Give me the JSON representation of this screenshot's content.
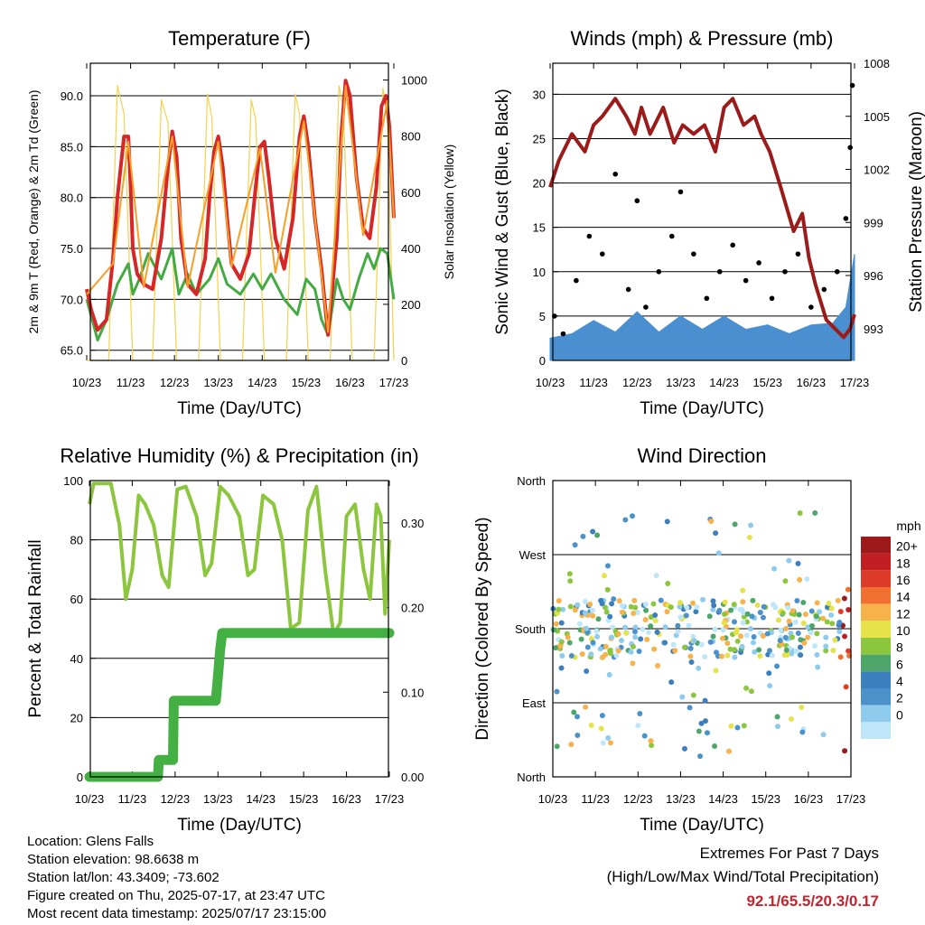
{
  "x_ticks": [
    "10/23",
    "11/23",
    "12/23",
    "13/23",
    "14/23",
    "15/23",
    "16/23",
    "17/23"
  ],
  "chart_data": [
    {
      "type": "line",
      "title": "Temperature (F)",
      "xlabel": "Time (Day/UTC)",
      "ylabel": "2m & 9m T (Red, Orange) & 2m Td (Green)",
      "ylabel_right": "Solar Insolation (Yellow)",
      "ylim": [
        64,
        93.2
      ],
      "yticks": [
        "65.0",
        "70.0",
        "75.0",
        "80.0",
        "85.0",
        "90.0"
      ],
      "ylim_right": [
        0,
        1060
      ],
      "yticks_right": [
        "0",
        "200",
        "400",
        "600",
        "800",
        "1000"
      ],
      "x_range": [
        0,
        7
      ],
      "grid": "horizontal",
      "series": [
        {
          "color": "#d62728",
          "x": [
            0,
            0.1,
            0.25,
            0.45,
            0.6,
            0.7,
            0.85,
            0.95,
            1.0,
            1.05,
            1.15,
            1.3,
            1.5,
            1.7,
            1.85,
            1.95,
            2.05,
            2.15,
            2.3,
            2.5,
            2.7,
            2.8,
            2.9,
            3.0,
            3.1,
            3.2,
            3.3,
            3.5,
            3.7,
            3.85,
            3.95,
            4.05,
            4.15,
            4.3,
            4.5,
            4.7,
            4.85,
            4.95,
            5.05,
            5.2,
            5.35,
            5.5,
            5.7,
            5.8,
            5.9,
            6.0,
            6.15,
            6.3,
            6.45,
            6.6,
            6.72,
            6.82,
            6.9,
            7.0
          ],
          "y": [
            71.0,
            69.0,
            67.0,
            68.0,
            74.0,
            80.0,
            86.0,
            86.0,
            81.0,
            75.0,
            72.5,
            71.5,
            71.0,
            76.0,
            83.0,
            86.5,
            84.0,
            76.0,
            71.5,
            70.5,
            74.0,
            80.0,
            84.5,
            86.0,
            83.0,
            78.0,
            73.5,
            72.0,
            74.5,
            81.0,
            85.0,
            85.5,
            82.0,
            76.0,
            73.0,
            78.0,
            86.0,
            88.0,
            85.0,
            78.0,
            73.0,
            66.5,
            76.0,
            86.0,
            91.5,
            90.0,
            82.0,
            77.0,
            76.0,
            81.0,
            89.0,
            90.0,
            87.0,
            78.0
          ]
        },
        {
          "color": "#f4a02a",
          "x": [
            0,
            0.6,
            0.95,
            1.3,
            1.95,
            2.3,
            3.0,
            3.3,
            3.95,
            4.3,
            4.95,
            5.5,
            5.9,
            6.3,
            6.85,
            7.0
          ],
          "y": [
            70.5,
            73.5,
            85.5,
            71.2,
            86.0,
            71.2,
            85.5,
            73.2,
            84.8,
            72.6,
            87.5,
            66.8,
            91.0,
            76.3,
            89.5,
            78.0
          ]
        },
        {
          "color": "#44aa44",
          "x": [
            0,
            0.25,
            0.45,
            0.7,
            0.95,
            1.05,
            1.2,
            1.4,
            1.7,
            1.95,
            2.1,
            2.3,
            2.5,
            2.8,
            3.0,
            3.2,
            3.5,
            3.8,
            4.0,
            4.2,
            4.5,
            4.8,
            5.0,
            5.2,
            5.35,
            5.5,
            5.7,
            5.85,
            6.0,
            6.2,
            6.4,
            6.55,
            6.7,
            6.85,
            7.0
          ],
          "y": [
            70.0,
            66.0,
            68.0,
            71.5,
            73.5,
            70.5,
            72.0,
            74.5,
            72.0,
            75.0,
            70.5,
            72.5,
            70.5,
            72.0,
            74.0,
            71.5,
            70.5,
            72.5,
            71.0,
            72.5,
            70.0,
            68.5,
            72.0,
            71.0,
            68.0,
            66.5,
            72.0,
            70.0,
            69.0,
            72.0,
            74.5,
            73.0,
            75.0,
            74.5,
            70.0
          ]
        },
        {
          "color": "#f2d24e",
          "axis": "right",
          "x": [
            0,
            0.35,
            0.5,
            0.7,
            0.85,
            1.05,
            1.2,
            1.4,
            1.5,
            1.7,
            1.85,
            2.05,
            2.2,
            2.4,
            2.55,
            2.75,
            2.85,
            3.05,
            3.2,
            3.4,
            3.55,
            3.75,
            3.85,
            4.05,
            4.2,
            4.4,
            4.55,
            4.75,
            4.85,
            5.05,
            5.2,
            5.4,
            5.55,
            5.75,
            5.85,
            6.05,
            6.2,
            6.4,
            6.55,
            6.75,
            6.85,
            7.0
          ],
          "y": [
            0,
            0,
            0,
            980,
            880,
            0,
            0,
            0,
            0,
            930,
            850,
            0,
            0,
            0,
            0,
            950,
            870,
            0,
            0,
            0,
            0,
            930,
            860,
            0,
            0,
            0,
            0,
            950,
            880,
            0,
            0,
            0,
            0,
            980,
            900,
            0,
            0,
            0,
            0,
            970,
            880,
            0
          ]
        }
      ]
    },
    {
      "type": "line",
      "title": "Winds (mph) & Pressure (mb)",
      "xlabel": "Time (Day/UTC)",
      "ylabel": "Sonic Wind & Gust (Blue, Black)",
      "ylabel_right": "Station Pressure (Maroon)",
      "ylim": [
        0,
        33.5
      ],
      "yticks": [
        "0",
        "5",
        "10",
        "15",
        "20",
        "25",
        "30"
      ],
      "ylim_right": [
        991.2,
        1008
      ],
      "yticks_right": [
        "993",
        "996",
        "999",
        "1002",
        "1005",
        "1008"
      ],
      "x_range": [
        0,
        7
      ],
      "grid": "horizontal",
      "series": [
        {
          "color": "#4a90d0",
          "x": [
            0,
            0.5,
            1.0,
            1.5,
            2.0,
            2.5,
            3.0,
            3.5,
            4.0,
            4.5,
            5.0,
            5.5,
            6.0,
            6.5,
            6.8,
            7.0
          ],
          "y": [
            2.5,
            3.0,
            4.5,
            3.2,
            5.5,
            3.2,
            5.0,
            3.5,
            5.0,
            3.5,
            4.0,
            3.0,
            4.0,
            4.2,
            6.0,
            12.0
          ]
        },
        {
          "color": "#000000",
          "type": "scatter",
          "x": [
            0.1,
            0.3,
            0.6,
            0.9,
            1.2,
            1.5,
            1.8,
            2.0,
            2.2,
            2.5,
            2.8,
            3.0,
            3.3,
            3.6,
            3.9,
            4.2,
            4.5,
            4.8,
            5.1,
            5.4,
            5.7,
            6.0,
            6.3,
            6.6,
            6.8,
            6.9,
            6.95
          ],
          "y": [
            5,
            3,
            9,
            14,
            12,
            21,
            8,
            18,
            6,
            10,
            14,
            19,
            12,
            7,
            10,
            13,
            9,
            11,
            7,
            10,
            12,
            6,
            8,
            10,
            16,
            24,
            31
          ]
        },
        {
          "color": "#9b1b1b",
          "axis": "right",
          "x": [
            0,
            0.2,
            0.5,
            0.8,
            1.0,
            1.2,
            1.5,
            1.75,
            1.95,
            2.1,
            2.3,
            2.6,
            2.85,
            3.05,
            3.3,
            3.55,
            3.8,
            4.0,
            4.2,
            4.45,
            4.7,
            4.85,
            5.05,
            5.3,
            5.6,
            5.8,
            5.95,
            6.1,
            6.35,
            6.55,
            6.75,
            6.9,
            7.0
          ],
          "y": [
            1001.0,
            1002.5,
            1004.0,
            1003.0,
            1004.5,
            1005.0,
            1006.0,
            1005.0,
            1004.0,
            1005.5,
            1004.0,
            1005.5,
            1003.5,
            1004.5,
            1004.0,
            1004.5,
            1003.0,
            1005.5,
            1006.0,
            1004.5,
            1005.0,
            1004.0,
            1003.0,
            1001.0,
            998.5,
            999.5,
            997.0,
            995.5,
            993.5,
            993.0,
            992.5,
            993.0,
            993.8
          ]
        }
      ]
    },
    {
      "type": "line",
      "title": "Relative Humidity (%) & Precipitation (in)",
      "xlabel": "Time (Day/UTC)",
      "ylabel": "Percent & Total Rainfall",
      "ylim": [
        0,
        100
      ],
      "yticks": [
        "0",
        "20",
        "40",
        "60",
        "80",
        "100"
      ],
      "ylim_right": [
        0,
        0.35
      ],
      "yticks_right": [
        "0.00",
        "0.10",
        "0.20",
        "0.30"
      ],
      "x_range": [
        0,
        7
      ],
      "grid": "horizontal",
      "series": [
        {
          "color": "#8cc63f",
          "x": [
            0,
            0.1,
            0.5,
            0.7,
            0.85,
            1.0,
            1.15,
            1.3,
            1.5,
            1.7,
            1.85,
            2.05,
            2.25,
            2.5,
            2.7,
            2.85,
            3.05,
            3.25,
            3.5,
            3.7,
            3.85,
            4.05,
            4.3,
            4.5,
            4.7,
            4.9,
            5.1,
            5.3,
            5.5,
            5.7,
            5.85,
            6.0,
            6.2,
            6.4,
            6.55,
            6.7,
            6.8,
            6.9,
            7.0
          ],
          "y": [
            92,
            99,
            99,
            85,
            60,
            70,
            95,
            92,
            85,
            68,
            64,
            97,
            98,
            88,
            68,
            72,
            98,
            95,
            88,
            68,
            70,
            95,
            92,
            80,
            50,
            52,
            90,
            98,
            70,
            48,
            52,
            88,
            92,
            70,
            60,
            92,
            88,
            55,
            80
          ]
        },
        {
          "color": "#44b044",
          "axis": "right",
          "x": [
            0,
            1.6,
            1.62,
            1.95,
            1.97,
            2.95,
            3.02,
            3.05,
            3.1,
            7.0
          ],
          "y": [
            0,
            0,
            0.02,
            0.02,
            0.09,
            0.09,
            0.13,
            0.15,
            0.17,
            0.17
          ]
        }
      ]
    },
    {
      "type": "scatter",
      "title": "Wind Direction",
      "xlabel": "Time (Day/UTC)",
      "ylabel": "Direction (Colored By Speed)",
      "ylim": [
        0,
        360
      ],
      "yticks": [
        "North",
        "East",
        "South",
        "West",
        "North"
      ],
      "x_range": [
        0,
        7
      ],
      "grid": "horizontal",
      "colorbar": {
        "title": "mph",
        "labels": [
          "0",
          "2",
          "4",
          "6",
          "8",
          "10",
          "12",
          "14",
          "16",
          "18",
          "20+"
        ],
        "colors": [
          "#bfe6f8",
          "#8ecbec",
          "#4b92c9",
          "#3c7fbe",
          "#4ea66a",
          "#8cc63f",
          "#e5e24a",
          "#f7b24b",
          "#f07030",
          "#dd3c2a",
          "#c01e22",
          "#9e1a1a"
        ]
      }
    }
  ],
  "footer": {
    "location": "Location: Glens Falls",
    "elevation": "Station elevation: 98.6638 m",
    "latlon": "Station lat/lon: 43.3409; -73.602",
    "created": "Figure created on Thu, 2025-07-17, at 23:47 UTC",
    "recent": "Most recent data timestamp: 2025/07/17 23:15:00"
  },
  "extremes": {
    "title": "Extremes For Past 7 Days",
    "subtitle": "(High/Low/Max Wind/Total Precipitation)",
    "values": "92.1/65.5/20.3/0.17"
  }
}
